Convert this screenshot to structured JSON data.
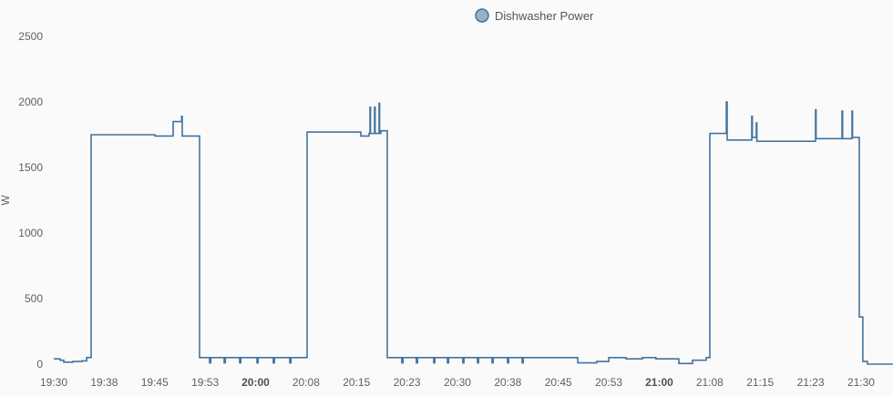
{
  "chart_data": {
    "type": "line",
    "step": "after",
    "title": "",
    "xlabel": "",
    "ylabel": "W",
    "ylim": [
      0,
      2500
    ],
    "xlim": [
      "19:30:00",
      "21:34:44"
    ],
    "grid": false,
    "legend_position": "top-center",
    "yticks": [
      0,
      500,
      1000,
      1500,
      2000,
      2500
    ],
    "xticks": [
      {
        "time": "19:30:00",
        "label": "19:30",
        "bold": false
      },
      {
        "time": "19:37:30",
        "label": "19:38",
        "bold": false
      },
      {
        "time": "19:45:00",
        "label": "19:45",
        "bold": false
      },
      {
        "time": "19:52:30",
        "label": "19:53",
        "bold": false
      },
      {
        "time": "20:00:00",
        "label": "20:00",
        "bold": true
      },
      {
        "time": "20:07:30",
        "label": "20:08",
        "bold": false
      },
      {
        "time": "20:15:00",
        "label": "20:15",
        "bold": false
      },
      {
        "time": "20:22:30",
        "label": "20:23",
        "bold": false
      },
      {
        "time": "20:30:00",
        "label": "20:30",
        "bold": false
      },
      {
        "time": "20:37:30",
        "label": "20:38",
        "bold": false
      },
      {
        "time": "20:45:00",
        "label": "20:45",
        "bold": false
      },
      {
        "time": "20:52:30",
        "label": "20:53",
        "bold": false
      },
      {
        "time": "21:00:00",
        "label": "21:00",
        "bold": true
      },
      {
        "time": "21:07:30",
        "label": "21:08",
        "bold": false
      },
      {
        "time": "21:15:00",
        "label": "21:15",
        "bold": false
      },
      {
        "time": "21:22:30",
        "label": "21:23",
        "bold": false
      },
      {
        "time": "21:30:00",
        "label": "21:30",
        "bold": false
      }
    ],
    "series": [
      {
        "name": "Dishwasher Power",
        "color": "#44739e",
        "legend_fill": "#98b1c8",
        "points": [
          [
            "19:30:00",
            40
          ],
          [
            "19:30:57",
            30
          ],
          [
            "19:31:29",
            15
          ],
          [
            "19:32:51",
            20
          ],
          [
            "19:34:12",
            25
          ],
          [
            "19:34:53",
            50
          ],
          [
            "19:35:33",
            1750
          ],
          [
            "19:45:02",
            1740
          ],
          [
            "19:47:45",
            1850
          ],
          [
            "19:49:00",
            1890
          ],
          [
            "19:49:06",
            1740
          ],
          [
            "19:51:40",
            50
          ],
          [
            "19:53:10",
            10
          ],
          [
            "19:53:20",
            50
          ],
          [
            "19:55:20",
            10
          ],
          [
            "19:55:30",
            50
          ],
          [
            "19:57:38",
            10
          ],
          [
            "19:57:48",
            50
          ],
          [
            "20:00:12",
            10
          ],
          [
            "20:00:22",
            50
          ],
          [
            "20:02:38",
            10
          ],
          [
            "20:02:48",
            50
          ],
          [
            "20:05:05",
            10
          ],
          [
            "20:05:15",
            50
          ],
          [
            "20:07:39",
            1770
          ],
          [
            "20:15:39",
            1740
          ],
          [
            "20:16:52",
            1760
          ],
          [
            "20:17:00",
            1960
          ],
          [
            "20:17:05",
            1760
          ],
          [
            "20:17:41",
            1960
          ],
          [
            "20:17:46",
            1760
          ],
          [
            "20:18:21",
            1990
          ],
          [
            "20:18:26",
            1760
          ],
          [
            "20:18:37",
            1780
          ],
          [
            "20:19:34",
            50
          ],
          [
            "20:21:44",
            10
          ],
          [
            "20:21:54",
            50
          ],
          [
            "20:23:54",
            10
          ],
          [
            "20:24:04",
            50
          ],
          [
            "20:26:29",
            10
          ],
          [
            "20:26:39",
            50
          ],
          [
            "20:28:31",
            10
          ],
          [
            "20:28:41",
            50
          ],
          [
            "20:30:48",
            10
          ],
          [
            "20:30:58",
            50
          ],
          [
            "20:32:59",
            10
          ],
          [
            "20:33:09",
            50
          ],
          [
            "20:35:09",
            10
          ],
          [
            "20:35:19",
            50
          ],
          [
            "20:37:27",
            10
          ],
          [
            "20:37:37",
            50
          ],
          [
            "20:39:37",
            10
          ],
          [
            "20:39:47",
            50
          ],
          [
            "20:47:53",
            10
          ],
          [
            "20:50:43",
            20
          ],
          [
            "20:52:30",
            50
          ],
          [
            "20:55:04",
            40
          ],
          [
            "20:57:30",
            50
          ],
          [
            "20:59:30",
            40
          ],
          [
            "21:02:55",
            5
          ],
          [
            "21:04:57",
            30
          ],
          [
            "21:06:59",
            50
          ],
          [
            "21:07:31",
            1760
          ],
          [
            "21:09:58",
            2000
          ],
          [
            "21:10:06",
            1710
          ],
          [
            "21:13:45",
            1890
          ],
          [
            "21:13:50",
            1730
          ],
          [
            "21:14:26",
            1840
          ],
          [
            "21:14:31",
            1700
          ],
          [
            "21:23:14",
            1940
          ],
          [
            "21:23:19",
            1720
          ],
          [
            "21:27:10",
            1930
          ],
          [
            "21:27:15",
            1720
          ],
          [
            "21:28:39",
            1930
          ],
          [
            "21:28:44",
            1730
          ],
          [
            "21:29:44",
            360
          ],
          [
            "21:30:16",
            20
          ],
          [
            "21:30:57",
            0
          ],
          [
            "21:34:44",
            0
          ]
        ]
      }
    ]
  }
}
